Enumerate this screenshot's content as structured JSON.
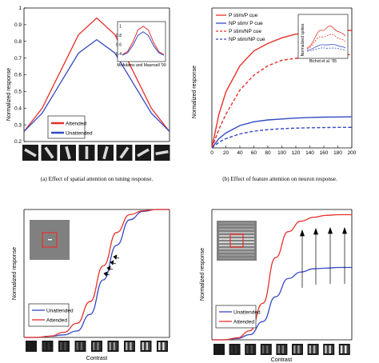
{
  "colors": {
    "red": "#e8302a",
    "blue": "#3449c4"
  },
  "captions": {
    "a": "(a) Effect of spatial attention on tuning response.",
    "b": "(b) Effect of feature attention on neuron response."
  },
  "chart_data": [
    {
      "type": "line",
      "ylabel": "Normalized response",
      "ylim": [
        0.2,
        1.0
      ],
      "yticks": [
        "0.2",
        "0.3",
        "0.4",
        "0.5",
        "0.6",
        "0.7",
        "0.8",
        "0.9",
        "1"
      ],
      "x": [
        0,
        1,
        2,
        3,
        4,
        5,
        6,
        7,
        8
      ],
      "series": [
        {
          "name": "Attended",
          "color": "red",
          "values": [
            0.26,
            0.4,
            0.62,
            0.84,
            0.94,
            0.84,
            0.62,
            0.4,
            0.26
          ]
        },
        {
          "name": "Unattended",
          "color": "blue",
          "values": [
            0.26,
            0.37,
            0.55,
            0.73,
            0.81,
            0.73,
            0.55,
            0.37,
            0.26
          ]
        }
      ],
      "legend": "bottom-left",
      "x_axis_images": "oriented bars",
      "inset": {
        "label": "McAdams and Maunsell '99",
        "yticks": [
          "0.4",
          "0.6",
          "0.8",
          "1"
        ],
        "ylim": [
          0.3,
          1.05
        ],
        "series": [
          {
            "color": "red",
            "values": [
              0.38,
              0.45,
              0.65,
              0.92,
              1.0,
              0.92,
              0.65,
              0.45,
              0.38
            ]
          },
          {
            "color": "blue",
            "values": [
              0.37,
              0.42,
              0.58,
              0.8,
              0.88,
              0.8,
              0.58,
              0.42,
              0.37
            ]
          }
        ]
      }
    },
    {
      "type": "line",
      "ylabel": "Normalized response",
      "xlim": [
        0,
        200
      ],
      "xticks": [
        "0",
        "20",
        "40",
        "60",
        "80",
        "100",
        "120",
        "140",
        "160",
        "180",
        "200"
      ],
      "ylim": [
        0,
        0.75
      ],
      "x": [
        0,
        10,
        20,
        40,
        60,
        80,
        100,
        120,
        140,
        160,
        180,
        200
      ],
      "series": [
        {
          "name": "P stim/P cue",
          "color": "red",
          "dash": false,
          "values": [
            0,
            0.18,
            0.3,
            0.44,
            0.52,
            0.56,
            0.59,
            0.61,
            0.62,
            0.625,
            0.63,
            0.63
          ]
        },
        {
          "name": "NP stim/ P cue",
          "color": "blue",
          "dash": false,
          "values": [
            0,
            0.05,
            0.08,
            0.12,
            0.14,
            0.15,
            0.155,
            0.16,
            0.163,
            0.165,
            0.166,
            0.167
          ]
        },
        {
          "name": "P stim/NP cue",
          "color": "red",
          "dash": true,
          "values": [
            0,
            0.1,
            0.18,
            0.31,
            0.39,
            0.44,
            0.47,
            0.48,
            0.49,
            0.495,
            0.5,
            0.5
          ]
        },
        {
          "name": "NP stim/NP cue",
          "color": "blue",
          "dash": true,
          "values": [
            0,
            0.03,
            0.05,
            0.075,
            0.09,
            0.098,
            0.103,
            0.106,
            0.108,
            0.109,
            0.11,
            0.11
          ]
        }
      ],
      "legend": "top-left",
      "inset": {
        "label": "Bichot et al. '05",
        "ylabel": "Normalized spikes"
      }
    },
    {
      "type": "line",
      "ylabel": "Normalized response",
      "xlabel": "Contrast",
      "ylim": [
        0,
        1
      ],
      "x": [
        0,
        1,
        2,
        3,
        4,
        5,
        6,
        7,
        8,
        9,
        10,
        11
      ],
      "series": [
        {
          "name": "Unattended",
          "color": "blue",
          "values": [
            0,
            0,
            0.01,
            0.02,
            0.05,
            0.18,
            0.45,
            0.72,
            0.92,
            0.985,
            1.0,
            1.0
          ]
        },
        {
          "name": "Attended",
          "color": "red",
          "values": [
            0,
            0,
            0.01,
            0.04,
            0.11,
            0.28,
            0.56,
            0.82,
            0.96,
            0.99,
            1.0,
            1.0
          ]
        }
      ],
      "legend": "bottom-left",
      "x_axis_images": "gratings of increasing contrast"
    },
    {
      "type": "line",
      "ylabel": "Normalized response",
      "xlabel": "Contrast",
      "ylim": [
        0,
        1
      ],
      "x": [
        0,
        1,
        2,
        3,
        4,
        5,
        6,
        7,
        8,
        9,
        10,
        11
      ],
      "series": [
        {
          "name": "Unattended",
          "color": "blue",
          "values": [
            0,
            0,
            0.01,
            0.04,
            0.14,
            0.33,
            0.47,
            0.52,
            0.545,
            0.55,
            0.555,
            0.555
          ]
        },
        {
          "name": "Attended",
          "color": "red",
          "values": [
            0,
            0,
            0.015,
            0.07,
            0.28,
            0.63,
            0.83,
            0.91,
            0.94,
            0.955,
            0.96,
            0.96
          ]
        }
      ],
      "legend": "bottom-left",
      "x_axis_images": "gratings of increasing contrast"
    }
  ]
}
